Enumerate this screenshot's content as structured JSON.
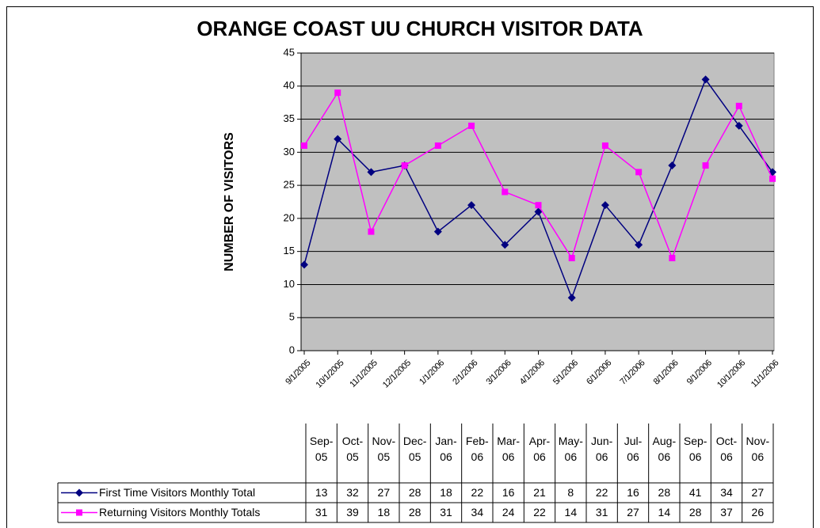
{
  "chart_data": {
    "type": "line",
    "title": "ORANGE COAST UU CHURCH VISITOR DATA",
    "y_label": "NUMBER OF VISITORS",
    "categories": [
      "9/1/2005",
      "10/1/2005",
      "11/1/2005",
      "12/1/2005",
      "1/1/2006",
      "2/1/2006",
      "3/1/2006",
      "4/1/2006",
      "5/1/2006",
      "6/1/2006",
      "7/1/2006",
      "8/1/2006",
      "9/1/2006",
      "10/1/2006",
      "11/1/2006"
    ],
    "table_headers": [
      "Sep-05",
      "Oct-05",
      "Nov-05",
      "Dec-05",
      "Jan-06",
      "Feb-06",
      "Mar-06",
      "Apr-06",
      "May-06",
      "Jun-06",
      "Jul-06",
      "Aug-06",
      "Sep-06",
      "Oct-06",
      "Nov-06"
    ],
    "series": [
      {
        "name": "First Time Visitors Monthly Total",
        "color": "#000080",
        "marker": "diamond",
        "values": [
          13,
          32,
          27,
          28,
          18,
          22,
          16,
          21,
          8,
          22,
          16,
          28,
          41,
          34,
          27
        ]
      },
      {
        "name": "Returning Visitors Monthly Totals",
        "color": "#ff00ff",
        "marker": "square",
        "values": [
          31,
          39,
          18,
          28,
          31,
          34,
          24,
          22,
          14,
          31,
          27,
          14,
          28,
          37,
          26
        ]
      }
    ],
    "ylim": [
      0,
      45
    ],
    "yticks": [
      0,
      5,
      10,
      15,
      20,
      25,
      30,
      35,
      40,
      45
    ],
    "grid": true,
    "plot_background": "#c0c0c0"
  }
}
